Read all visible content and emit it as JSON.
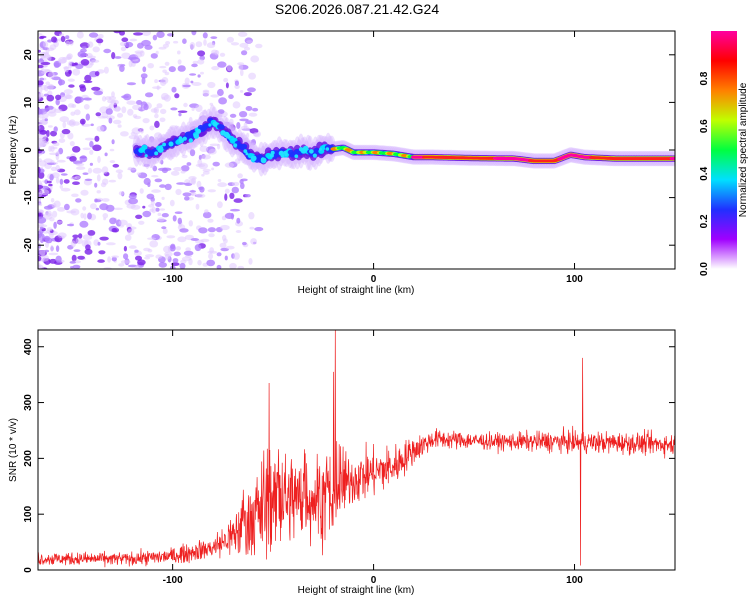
{
  "title": "S206.2026.087.21.42.G24",
  "chart_data": [
    {
      "type": "heatmap",
      "xlabel": "Height of straight line (km)",
      "ylabel": "Frequency (Hz)",
      "xlim": [
        -167,
        150
      ],
      "ylim": [
        -25,
        25
      ],
      "x_ticks": [
        -100,
        0,
        100
      ],
      "y_ticks": [
        -20,
        -10,
        0,
        10,
        20
      ],
      "ridge": [
        {
          "x": -117,
          "y": 0.0
        },
        {
          "x": -110,
          "y": -0.5
        },
        {
          "x": -103,
          "y": 1.0
        },
        {
          "x": -97,
          "y": 2.0
        },
        {
          "x": -90,
          "y": 3.0
        },
        {
          "x": -85,
          "y": 4.5
        },
        {
          "x": -80,
          "y": 6.0
        },
        {
          "x": -75,
          "y": 4.0
        },
        {
          "x": -70,
          "y": 2.0
        },
        {
          "x": -65,
          "y": 0.5
        },
        {
          "x": -60,
          "y": -1.5
        },
        {
          "x": -55,
          "y": -2.0
        },
        {
          "x": -50,
          "y": -1.0
        },
        {
          "x": -45,
          "y": -0.5
        },
        {
          "x": -40,
          "y": -1.0
        },
        {
          "x": -35,
          "y": 0.0
        },
        {
          "x": -30,
          "y": -1.0
        },
        {
          "x": -25,
          "y": 0.5
        },
        {
          "x": -20,
          "y": 0.2
        },
        {
          "x": -15,
          "y": 0.5
        },
        {
          "x": -10,
          "y": -0.5
        },
        {
          "x": -5,
          "y": -0.5
        },
        {
          "x": 0,
          "y": -0.5
        },
        {
          "x": 10,
          "y": -0.8
        },
        {
          "x": 20,
          "y": -1.5
        },
        {
          "x": 30,
          "y": -1.5
        },
        {
          "x": 50,
          "y": -1.7
        },
        {
          "x": 70,
          "y": -1.8
        },
        {
          "x": 80,
          "y": -2.3
        },
        {
          "x": 90,
          "y": -2.3
        },
        {
          "x": 98,
          "y": -1.0
        },
        {
          "x": 105,
          "y": -1.5
        },
        {
          "x": 120,
          "y": -1.8
        },
        {
          "x": 150,
          "y": -1.8
        }
      ],
      "colorbar": {
        "label": "Normalized spectral amplitude",
        "ticks": [
          "0.0",
          "0.2",
          "0.4",
          "0.6",
          "0.8"
        ],
        "colors": [
          "#ffffff",
          "#a000ff",
          "#2030ff",
          "#00e0ff",
          "#00ff40",
          "#c0ff00",
          "#ff8000",
          "#ff0000",
          "#ff00a0"
        ]
      }
    },
    {
      "type": "line",
      "xlabel": "Height of straight line (km)",
      "ylabel": "SNR (10 * v/v)",
      "xlim": [
        -167,
        150
      ],
      "ylim": [
        0,
        430
      ],
      "x_ticks": [
        -100,
        0,
        100
      ],
      "y_ticks": [
        0,
        100,
        200,
        300,
        400
      ],
      "series_color": "#ee2020",
      "envelope": [
        {
          "x": -167,
          "base": 20,
          "noise": 12
        },
        {
          "x": -120,
          "base": 20,
          "noise": 12
        },
        {
          "x": -100,
          "base": 25,
          "noise": 15
        },
        {
          "x": -80,
          "base": 40,
          "noise": 20
        },
        {
          "x": -70,
          "base": 60,
          "noise": 40
        },
        {
          "x": -60,
          "base": 100,
          "noise": 80
        },
        {
          "x": -50,
          "base": 120,
          "noise": 90
        },
        {
          "x": -40,
          "base": 130,
          "noise": 80
        },
        {
          "x": -30,
          "base": 130,
          "noise": 80
        },
        {
          "x": -20,
          "base": 130,
          "noise": 80
        },
        {
          "x": -12,
          "base": 160,
          "noise": 50
        },
        {
          "x": 0,
          "base": 175,
          "noise": 45
        },
        {
          "x": 10,
          "base": 185,
          "noise": 40
        },
        {
          "x": 20,
          "base": 215,
          "noise": 25
        },
        {
          "x": 30,
          "base": 235,
          "noise": 18
        },
        {
          "x": 60,
          "base": 230,
          "noise": 15
        },
        {
          "x": 90,
          "base": 230,
          "noise": 20
        },
        {
          "x": 120,
          "base": 228,
          "noise": 20
        },
        {
          "x": 150,
          "base": 225,
          "noise": 20
        }
      ],
      "spikes": [
        {
          "x": -52,
          "y": 335
        },
        {
          "x": -19,
          "y": 430
        },
        {
          "x": -20,
          "y": 355
        },
        {
          "x": 104,
          "y": 380
        },
        {
          "x": 103,
          "y": 8
        }
      ]
    }
  ]
}
